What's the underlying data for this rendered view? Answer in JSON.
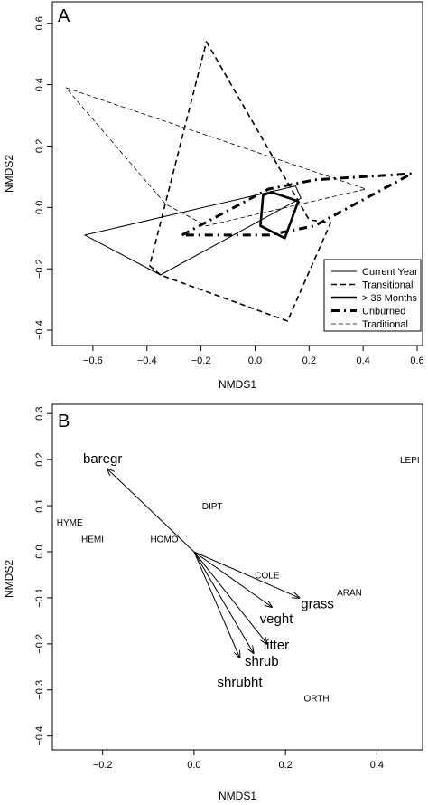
{
  "chart_data": [
    {
      "type": "polygon-ordination",
      "panel_label": "A",
      "xlabel": "NMDS1",
      "ylabel": "NMDS2",
      "xlim": [
        -0.75,
        0.62
      ],
      "ylim": [
        -0.45,
        0.67
      ],
      "xticks": [
        -0.6,
        -0.4,
        -0.2,
        0.0,
        0.2,
        0.4,
        0.6
      ],
      "yticks": [
        -0.4,
        -0.2,
        0.0,
        0.2,
        0.4,
        0.6
      ],
      "xtick_labels": [
        "−0.6",
        "−0.4",
        "−0.2",
        "0.0",
        "0.2",
        "0.4",
        "0.6"
      ],
      "ytick_labels": [
        "−0.4",
        "−0.2",
        "0.0",
        "0.2",
        "0.4",
        "0.6"
      ],
      "legend_position": "bottom-right",
      "series": [
        {
          "name": "Current Year",
          "line_style": "solid-thin",
          "points": [
            [
              -0.63,
              -0.09
            ],
            [
              0.15,
              0.07
            ],
            [
              0.17,
              0.03
            ],
            [
              -0.35,
              -0.22
            ]
          ]
        },
        {
          "name": "Transitional",
          "line_style": "dashed",
          "points": [
            [
              -0.18,
              0.54
            ],
            [
              0.2,
              -0.04
            ],
            [
              0.28,
              -0.05
            ],
            [
              0.12,
              -0.37
            ],
            [
              -0.35,
              -0.22
            ],
            [
              -0.39,
              -0.19
            ]
          ]
        },
        {
          "name": "> 36 Months",
          "line_style": "solid-thick",
          "points": [
            [
              0.03,
              0.04
            ],
            [
              0.06,
              0.05
            ],
            [
              0.16,
              0.02
            ],
            [
              0.11,
              -0.1
            ],
            [
              0.02,
              -0.06
            ]
          ]
        },
        {
          "name": "Unburned",
          "line_style": "dashdot-thick",
          "points": [
            [
              -0.27,
              -0.09
            ],
            [
              0.05,
              0.06
            ],
            [
              0.22,
              0.09
            ],
            [
              0.58,
              0.11
            ],
            [
              0.22,
              -0.06
            ],
            [
              0.05,
              -0.09
            ]
          ]
        },
        {
          "name": "Traditional",
          "line_style": "dashed-thin",
          "points": [
            [
              -0.7,
              0.39
            ],
            [
              0.41,
              0.06
            ],
            [
              -0.18,
              -0.06
            ],
            [
              -0.33,
              0.01
            ]
          ]
        }
      ]
    },
    {
      "type": "biplot",
      "panel_label": "B",
      "xlabel": "NMDS1",
      "ylabel": "NMDS2",
      "xlim": [
        -0.31,
        0.5
      ],
      "ylim": [
        -0.43,
        0.32
      ],
      "xticks": [
        -0.2,
        0.0,
        0.2,
        0.4
      ],
      "yticks": [
        -0.4,
        -0.3,
        -0.2,
        -0.1,
        0.0,
        0.1,
        0.2,
        0.3
      ],
      "xtick_labels": [
        "−0.2",
        "0.0",
        "0.2",
        "0.4"
      ],
      "ytick_labels": [
        "−0.4",
        "−0.3",
        "−0.2",
        "−0.1",
        "0.0",
        "0.1",
        "0.2",
        "0.3"
      ],
      "vectors": [
        {
          "label": "baregr",
          "x": -0.19,
          "y": 0.18
        },
        {
          "label": "grass",
          "x": 0.23,
          "y": -0.1
        },
        {
          "label": "veght",
          "x": 0.17,
          "y": -0.12
        },
        {
          "label": "litter",
          "x": 0.16,
          "y": -0.2
        },
        {
          "label": "shrub",
          "x": 0.13,
          "y": -0.22
        },
        {
          "label": "shrubht",
          "x": 0.1,
          "y": -0.23
        }
      ],
      "vector_labels": [
        {
          "label": "baregr",
          "x": -0.2,
          "y": 0.2
        },
        {
          "label": "grass",
          "x": 0.27,
          "y": -0.115
        },
        {
          "label": "veght",
          "x": 0.18,
          "y": -0.147
        },
        {
          "label": "litter",
          "x": 0.18,
          "y": -0.204
        },
        {
          "label": "shrub",
          "x": 0.148,
          "y": -0.24
        },
        {
          "label": "shrubht",
          "x": 0.1,
          "y": -0.285
        }
      ],
      "taxa": [
        {
          "label": "LEPI",
          "x": 0.472,
          "y": 0.198
        },
        {
          "label": "DIPT",
          "x": 0.04,
          "y": 0.097
        },
        {
          "label": "HYME",
          "x": -0.272,
          "y": 0.062
        },
        {
          "label": "HEMI",
          "x": -0.222,
          "y": 0.026
        },
        {
          "label": "HOMO",
          "x": -0.065,
          "y": 0.026
        },
        {
          "label": "COLE",
          "x": 0.16,
          "y": -0.053
        },
        {
          "label": "ARAN",
          "x": 0.34,
          "y": -0.09
        },
        {
          "label": "ORTH",
          "x": 0.268,
          "y": -0.32
        }
      ]
    }
  ]
}
